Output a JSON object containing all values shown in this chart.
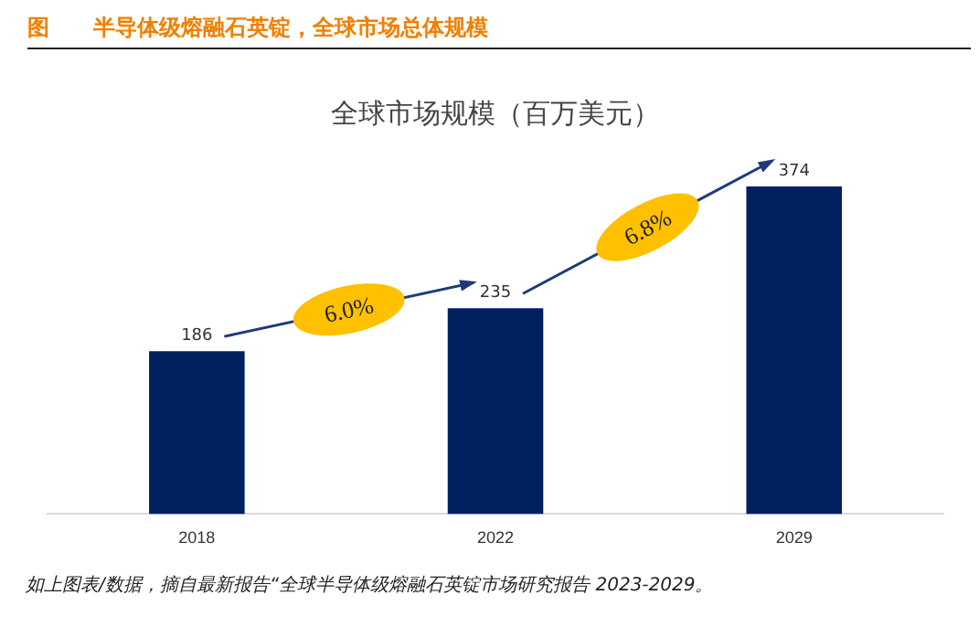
{
  "chart_data": {
    "type": "bar",
    "title": "图　　半导体级熔融石英锭，全球市场总体规模",
    "subtitle": "全球市场规模（百万美元）",
    "categories": [
      "2018",
      "2022",
      "2029"
    ],
    "values": [
      186,
      235,
      374
    ],
    "color": "#002060",
    "tick_labels": "x",
    "data_labels": true,
    "grid": false,
    "legend": false,
    "annotations": [
      "6.0%",
      "6.8%",
      "如上图表/数据，摘自最新报告“全球半导体级熔融石英锭市场研究报告 2023-2029。"
    ]
  }
}
